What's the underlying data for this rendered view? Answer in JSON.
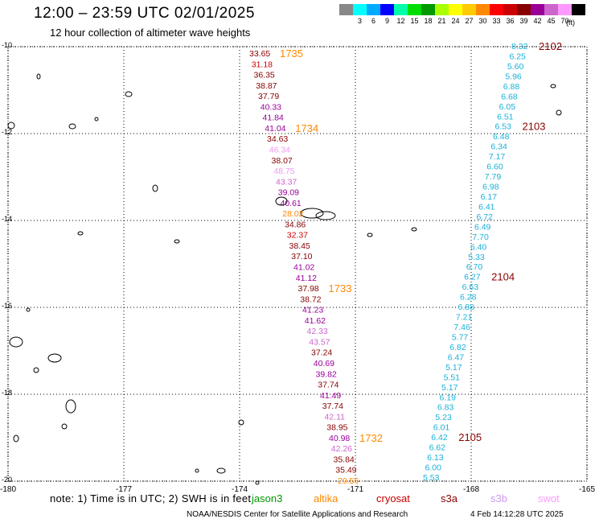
{
  "title": "12:00 – 23:59 UTC 02/01/2025",
  "subtitle": "12 hour collection of altimeter wave heights",
  "legend": {
    "unit": "(ft)",
    "swatches": [
      {
        "color": "#888888",
        "label": ""
      },
      {
        "color": "#00ffff",
        "label": "3"
      },
      {
        "color": "#00aaff",
        "label": "6"
      },
      {
        "color": "#0000ff",
        "label": "9"
      },
      {
        "color": "#00ffaa",
        "label": "12"
      },
      {
        "color": "#00dd00",
        "label": "15"
      },
      {
        "color": "#009900",
        "label": "18"
      },
      {
        "color": "#aaff00",
        "label": "21"
      },
      {
        "color": "#ffff00",
        "label": "24"
      },
      {
        "color": "#ffcc00",
        "label": "27"
      },
      {
        "color": "#ff8800",
        "label": "30"
      },
      {
        "color": "#ff0000",
        "label": "33"
      },
      {
        "color": "#cc0000",
        "label": "36"
      },
      {
        "color": "#880000",
        "label": "39"
      },
      {
        "color": "#990099",
        "label": "42"
      },
      {
        "color": "#cc66cc",
        "label": "45"
      },
      {
        "color": "#ff99ff",
        "label": "70"
      },
      {
        "color": "#000000",
        "label": ""
      }
    ]
  },
  "map": {
    "lon_range": [
      -180,
      -165
    ],
    "lat_range": [
      -20,
      -10
    ],
    "lon_ticks": [
      "-180",
      "-177",
      "-174",
      "-171",
      "-168",
      "-165"
    ],
    "lat_ticks": [
      "-10",
      "-12",
      "-14",
      "-16",
      "-18",
      "-20"
    ],
    "track_west": {
      "values": [
        {
          "v": "33.65",
          "c": "#880000"
        },
        {
          "v": "31.18",
          "c": "#cc0000"
        },
        {
          "v": "36.35",
          "c": "#880000"
        },
        {
          "v": "38.87",
          "c": "#880000"
        },
        {
          "v": "37.79",
          "c": "#880000"
        },
        {
          "v": "40.33",
          "c": "#990099"
        },
        {
          "v": "41.84",
          "c": "#990099"
        },
        {
          "v": "41.04",
          "c": "#990099"
        },
        {
          "v": "34.63",
          "c": "#880000"
        },
        {
          "v": "46.34",
          "c": "#ee99ee"
        },
        {
          "v": "38.07",
          "c": "#880000"
        },
        {
          "v": "48.75",
          "c": "#ee99ee"
        },
        {
          "v": "43.37",
          "c": "#cc66cc"
        },
        {
          "v": "39.09",
          "c": "#990099"
        },
        {
          "v": "40.61",
          "c": "#990099"
        },
        {
          "v": "28.02",
          "c": "#ff8800"
        },
        {
          "v": "34.86",
          "c": "#880000"
        },
        {
          "v": "32.37",
          "c": "#cc0000"
        },
        {
          "v": "38.45",
          "c": "#880000"
        },
        {
          "v": "37.10",
          "c": "#880000"
        },
        {
          "v": "41.02",
          "c": "#990099"
        },
        {
          "v": "41.12",
          "c": "#990099"
        },
        {
          "v": "37.98",
          "c": "#880000"
        },
        {
          "v": "38.72",
          "c": "#880000"
        },
        {
          "v": "41.23",
          "c": "#990099"
        },
        {
          "v": "41.62",
          "c": "#990099"
        },
        {
          "v": "42.33",
          "c": "#cc66cc"
        },
        {
          "v": "43.57",
          "c": "#cc66cc"
        },
        {
          "v": "37.24",
          "c": "#880000"
        },
        {
          "v": "40.69",
          "c": "#990099"
        },
        {
          "v": "39.82",
          "c": "#990099"
        },
        {
          "v": "37.74",
          "c": "#880000"
        },
        {
          "v": "41.49",
          "c": "#990099"
        },
        {
          "v": "37.74",
          "c": "#880000"
        },
        {
          "v": "42.11",
          "c": "#cc66cc"
        },
        {
          "v": "38.95",
          "c": "#880000"
        },
        {
          "v": "40.98",
          "c": "#990099"
        },
        {
          "v": "42.26",
          "c": "#cc66cc"
        },
        {
          "v": "35.84",
          "c": "#880000"
        },
        {
          "v": "35.49",
          "c": "#880000"
        },
        {
          "v": "29.56",
          "c": "#ff8800"
        }
      ],
      "times": [
        {
          "t": "1735",
          "c": "#ff8800",
          "index": 0
        },
        {
          "t": "1734",
          "c": "#ff8800",
          "index": 7
        },
        {
          "t": "1733",
          "c": "#ff8800",
          "index": 22
        },
        {
          "t": "1732",
          "c": "#ff8800",
          "index": 36
        }
      ]
    },
    "track_east": {
      "values": [
        "8.32",
        "6.25",
        "5.60",
        "5.96",
        "6.88",
        "6.68",
        "6.05",
        "6.51",
        "6.53",
        "6.48",
        "6.34",
        "7.17",
        "6.60",
        "7.79",
        "6.98",
        "6.17",
        "6.41",
        "6.72",
        "6.49",
        "7.70",
        "6.40",
        "5.33",
        "6.70",
        "6.27",
        "6.63",
        "6.28",
        "6.88",
        "7.21",
        "7.46",
        "5.77",
        "6.82",
        "6.47",
        "5.17",
        "5.51",
        "5.17",
        "6.19",
        "6.83",
        "5.23",
        "6.01",
        "6.42",
        "6.62",
        "6.13",
        "6.00",
        "5.53"
      ],
      "color": "#1ab0d8",
      "times": [
        {
          "t": "2102",
          "c": "#880000",
          "index": 0
        },
        {
          "t": "2103",
          "c": "#880000",
          "index": 8
        },
        {
          "t": "2104",
          "c": "#880000",
          "index": 23
        },
        {
          "t": "2105",
          "c": "#880000",
          "index": 39
        }
      ]
    }
  },
  "footer": {
    "note": "note:  1) Time is in UTC; 2) SWH is in feet",
    "satellites": [
      {
        "name": "jason3",
        "color": "#009900"
      },
      {
        "name": "altika",
        "color": "#ff8800"
      },
      {
        "name": "cryosat",
        "color": "#cc0000"
      },
      {
        "name": "s3a",
        "color": "#880000"
      },
      {
        "name": "s3b",
        "color": "#cc99ee"
      },
      {
        "name": "swot",
        "color": "#ff99ff"
      }
    ],
    "credit": "NOAA/NESDIS Center for Satellite Applications and Research",
    "timestamp": "4 Feb 14:12:28 UTC 2025"
  }
}
